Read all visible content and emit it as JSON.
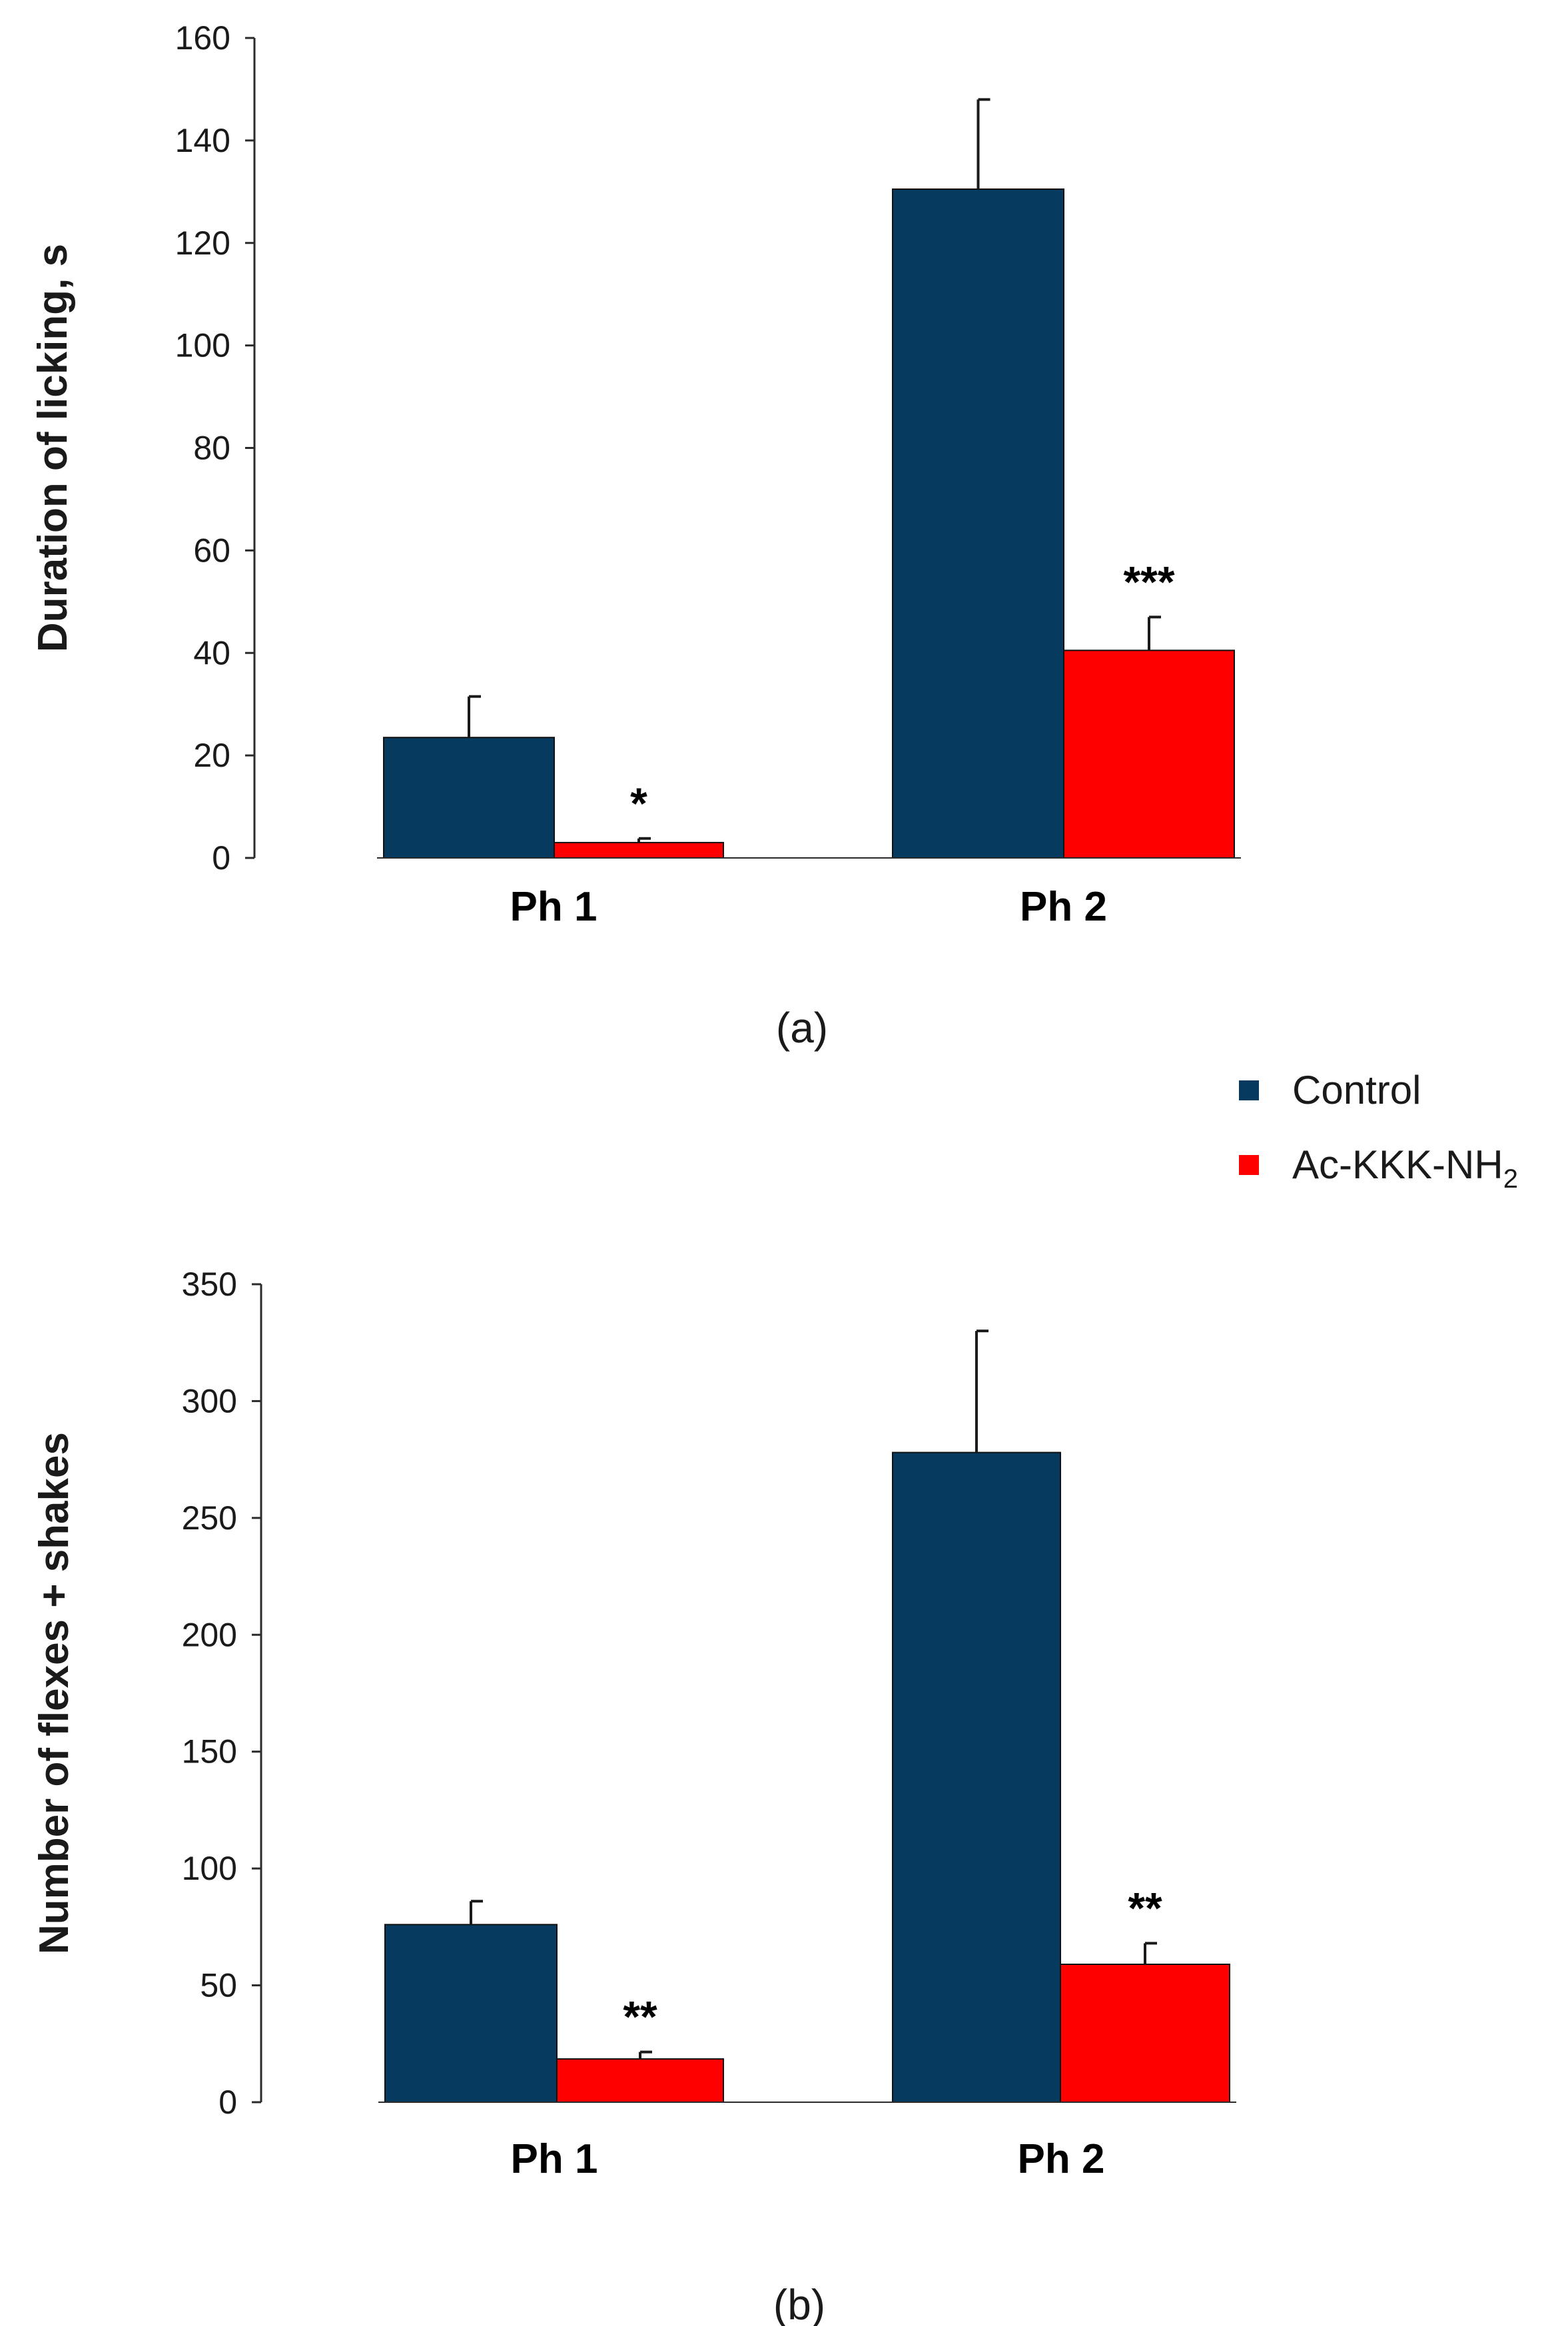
{
  "colors": {
    "control": "#063B5F",
    "treatment": "#FF0000",
    "axis": "#2b2b2b",
    "error": "#1a1a1a"
  },
  "legend": {
    "control_label": "Control",
    "treatment_label_main": "Ac-KKK-NH",
    "treatment_label_sub": "2"
  },
  "chart_data": [
    {
      "type": "bar",
      "panel_label": "(a)",
      "ylabel": "Duration of licking, s",
      "ylim": [
        0,
        160
      ],
      "ytick_step": 20,
      "yticks": [
        "0",
        "20",
        "40",
        "60",
        "80",
        "100",
        "120",
        "140",
        "160"
      ],
      "categories": [
        "Ph 1",
        "Ph 2"
      ],
      "series": [
        {
          "name": "Control",
          "values": [
            23.5,
            130.5
          ],
          "errors": [
            8,
            17.5
          ]
        },
        {
          "name": "Ac-KKK-NH2",
          "values": [
            3,
            40.5
          ],
          "errors": [
            0.8,
            6.5
          ]
        }
      ],
      "annotations": [
        {
          "category": "Ph 1",
          "series": "Ac-KKK-NH2",
          "text": "*"
        },
        {
          "category": "Ph 2",
          "series": "Ac-KKK-NH2",
          "text": "***"
        }
      ]
    },
    {
      "type": "bar",
      "panel_label": "(b)",
      "ylabel": "Number of  flexes + shakes",
      "ylim": [
        0,
        350
      ],
      "ytick_step": 50,
      "yticks": [
        "0",
        "50",
        "100",
        "150",
        "200",
        "250",
        "300",
        "350"
      ],
      "categories": [
        "Ph 1",
        "Ph 2"
      ],
      "series": [
        {
          "name": "Control",
          "values": [
            76,
            278
          ],
          "errors": [
            10,
            52
          ]
        },
        {
          "name": "Ac-KKK-NH2",
          "values": [
            18.5,
            59
          ],
          "errors": [
            3,
            9
          ]
        }
      ],
      "annotations": [
        {
          "category": "Ph 1",
          "series": "Ac-KKK-NH2",
          "text": "**"
        },
        {
          "category": "Ph 2",
          "series": "Ac-KKK-NH2",
          "text": "**"
        }
      ]
    }
  ]
}
